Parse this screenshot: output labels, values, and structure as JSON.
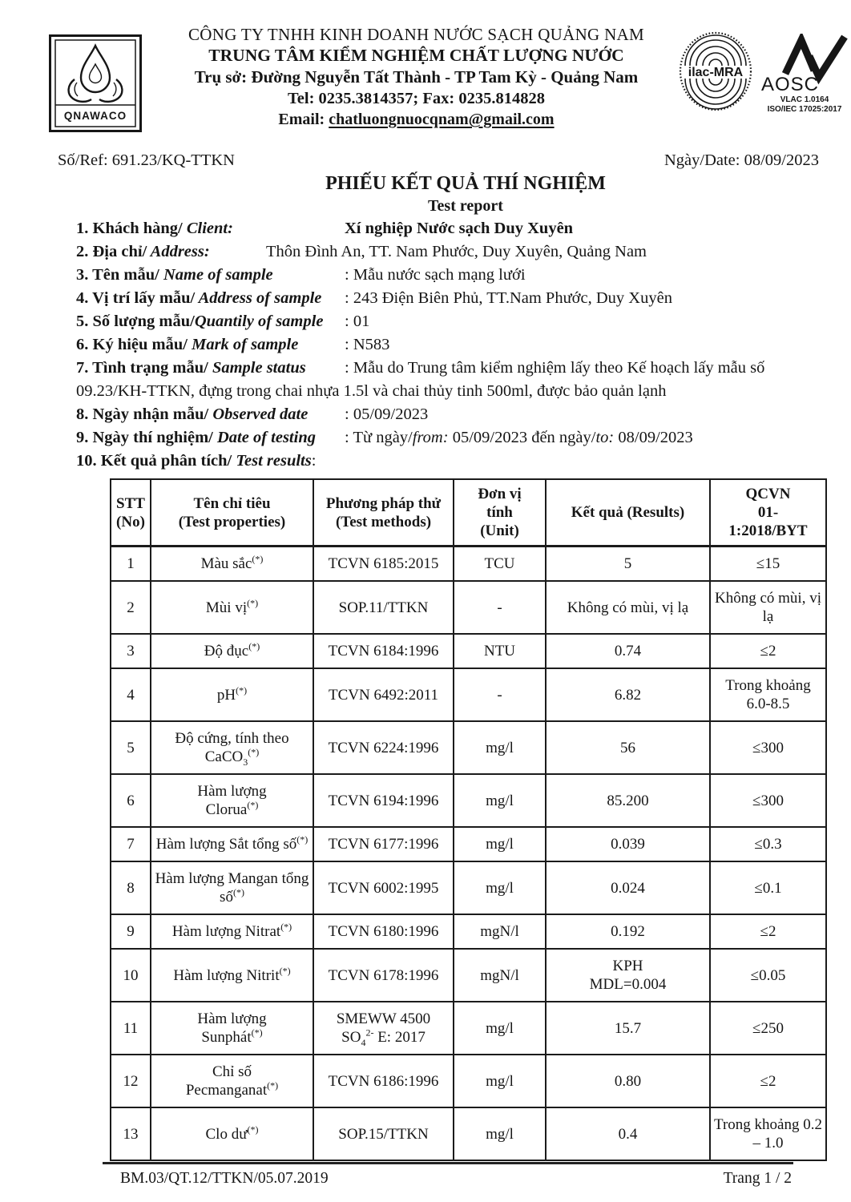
{
  "colors": {
    "ink": "#161616",
    "table_border": "#1b1b1b",
    "background": "#ffffff"
  },
  "header": {
    "org_line1": "CÔNG TY TNHH KINH DOANH NƯỚC SẠCH QUẢNG NAM",
    "org_line2": "TRUNG TÂM KIỂM NGHIỆM CHẤT LƯỢNG NƯỚC",
    "org_line3": "Trụ sở: Đường Nguyễn Tất Thành - TP Tam Kỳ - Quảng Nam",
    "org_line4": "Tel: 0235.3814357; Fax: 0235.814828",
    "email_label": "Email:",
    "email": "chatluongnuocqnam@gmail.com",
    "logos": {
      "qnawaco": "QNAWACO",
      "ilac": "ilac-MRA",
      "aosc": "AOSC",
      "vlac_line": "VLAC 1.0164",
      "iso_line": "ISO/IEC 17025:2017"
    }
  },
  "ref_row": {
    "ref": "Số/Ref: 691.23/KQ-TTKN",
    "date": "Ngày/Date: 08/09/2023"
  },
  "title": {
    "vi": "PHIẾU KẾT QUẢ THÍ NGHIỆM",
    "en": "Test report"
  },
  "items": [
    {
      "label_vi": "1. Khách hàng/",
      "label_en": " Client:",
      "bold_value": true,
      "value_parts": [
        {
          "t": "Xí nghiệp Nước sạch Duy Xuyên"
        }
      ]
    },
    {
      "label_vi": "2. Địa chỉ/",
      "label_en": " Address:",
      "value_parts": [
        {
          "t": "Thôn Đình An, TT. Nam Phước, Duy Xuyên, Quảng Nam"
        }
      ]
    },
    {
      "label_vi": "3. Tên mẫu/",
      "label_en": " Name of sample",
      "value_parts": [
        {
          "t": ": Mẫu nước sạch mạng lưới"
        }
      ]
    },
    {
      "label_vi": "4. Vị trí lấy mẫu/",
      "label_en": " Address of sample",
      "value_parts": [
        {
          "t": ": 243 Điện Biên Phủ, TT.Nam Phước, Duy Xuyên"
        }
      ]
    },
    {
      "label_vi": "5. Số lượng mẫu/",
      "label_en": "Quantily of sample",
      "value_parts": [
        {
          "t": ": 01"
        }
      ]
    },
    {
      "label_vi": "6. Ký hiệu mẫu/",
      "label_en": " Mark of sample",
      "value_parts": [
        {
          "t": ": N583"
        }
      ]
    },
    {
      "label_vi": "7. Tình trạng mẫu/",
      "label_en": " Sample status",
      "value_parts": [
        {
          "t": ": Mẫu do Trung tâm kiểm nghiệm lấy theo Kế hoạch lấy mẫu số 09.23/KH-TTKN, đựng trong chai nhựa 1.5l và chai thủy tinh 500ml, được bảo quản lạnh"
        }
      ]
    },
    {
      "label_vi": "8. Ngày nhận mẫu/",
      "label_en": " Observed date",
      "value_parts": [
        {
          "t": ": 05/09/2023"
        }
      ]
    },
    {
      "label_vi": "9. Ngày thí nghiệm/",
      "label_en": " Date of testing",
      "value_parts": [
        {
          "t": ": Từ ngày/"
        },
        {
          "t": "from:",
          "m": "i"
        },
        {
          "t": " 05/09/2023  đến ngày/"
        },
        {
          "t": "to:",
          "m": "i"
        },
        {
          "t": " 08/09/2023"
        }
      ]
    },
    {
      "label_vi": "10. Kết quả phân tích/",
      "label_en": " Test results",
      "value_parts": [
        {
          "t": ":"
        }
      ]
    }
  ],
  "table": {
    "headers": [
      "STT\n(No)",
      "Tên chỉ tiêu\n(Test properties)",
      "Phương pháp thử\n(Test methods)",
      "Đơn vị\ntính\n(Unit)",
      "Kết quả (Results)",
      "QCVN\n01-\n1:2018/BYT"
    ],
    "rows": [
      {
        "no": "1",
        "name_parts": [
          {
            "t": "Màu sắc"
          },
          {
            "t": "(*)",
            "m": "sup"
          }
        ],
        "method": "TCVN 6185:2015",
        "unit": "TCU",
        "result": "5",
        "limit": "≤15"
      },
      {
        "no": "2",
        "name_parts": [
          {
            "t": "Mùi vị"
          },
          {
            "t": "(*)",
            "m": "sup"
          }
        ],
        "method": "SOP.11/TTKN",
        "unit": "-",
        "result": "Không có mùi, vị lạ",
        "limit": "Không có mùi, vị lạ"
      },
      {
        "no": "3",
        "name_parts": [
          {
            "t": "Độ đục"
          },
          {
            "t": "(*)",
            "m": "sup"
          }
        ],
        "method": "TCVN 6184:1996",
        "unit": "NTU",
        "result": "0.74",
        "limit": "≤2"
      },
      {
        "no": "4",
        "name_parts": [
          {
            "t": "pH"
          },
          {
            "t": "(*)",
            "m": "sup"
          }
        ],
        "method": "TCVN 6492:2011",
        "unit": "-",
        "result": "6.82",
        "limit": "Trong khoảng 6.0-8.5"
      },
      {
        "no": "5",
        "name_parts": [
          {
            "t": "Độ cứng, tính theo CaCO"
          },
          {
            "t": "3",
            "m": "sub"
          },
          {
            "t": "(*)",
            "m": "sup"
          }
        ],
        "method": "TCVN 6224:1996",
        "unit": "mg/l",
        "result": "56",
        "limit": "≤300"
      },
      {
        "no": "6",
        "name_parts": [
          {
            "t": "Hàm lượng\nClorua"
          },
          {
            "t": "(*)",
            "m": "sup"
          }
        ],
        "method": "TCVN 6194:1996",
        "unit": "mg/l",
        "result": "85.200",
        "limit": "≤300"
      },
      {
        "no": "7",
        "name_parts": [
          {
            "t": "Hàm lượng Sắt tổng số"
          },
          {
            "t": "(*)",
            "m": "sup"
          }
        ],
        "method": "TCVN 6177:1996",
        "unit": "mg/l",
        "result": "0.039",
        "limit": "≤0.3"
      },
      {
        "no": "8",
        "name_parts": [
          {
            "t": "Hàm lượng Mangan tổng số"
          },
          {
            "t": "(*)",
            "m": "sup"
          }
        ],
        "method": "TCVN 6002:1995",
        "unit": "mg/l",
        "result": "0.024",
        "limit": "≤0.1"
      },
      {
        "no": "9",
        "name_parts": [
          {
            "t": "Hàm lượng Nitrat"
          },
          {
            "t": "(*)",
            "m": "sup"
          }
        ],
        "method": "TCVN 6180:1996",
        "unit": "mgN/l",
        "result": "0.192",
        "limit": "≤2"
      },
      {
        "no": "10",
        "name_parts": [
          {
            "t": "Hàm lượng Nitrit"
          },
          {
            "t": "(*)",
            "m": "sup"
          }
        ],
        "method": "TCVN 6178:1996",
        "unit": "mgN/l",
        "result": "KPH\nMDL=0.004",
        "limit": "≤0.05"
      },
      {
        "no": "11",
        "name_parts": [
          {
            "t": "Hàm lượng\nSunphát"
          },
          {
            "t": "(*)",
            "m": "sup"
          }
        ],
        "method_parts": [
          {
            "t": "SMEWW 4500\nSO"
          },
          {
            "t": "4",
            "m": "sub"
          },
          {
            "t": "2-",
            "m": "sup"
          },
          {
            "t": " E: 2017"
          }
        ],
        "unit": "mg/l",
        "result": "15.7",
        "limit": "≤250"
      },
      {
        "no": "12",
        "name_parts": [
          {
            "t": "Chỉ số\nPecmanganat"
          },
          {
            "t": "(*)",
            "m": "sup"
          }
        ],
        "method": "TCVN 6186:1996",
        "unit": "mg/l",
        "result": "0.80",
        "limit": "≤2"
      },
      {
        "no": "13",
        "name_parts": [
          {
            "t": "Clo dư"
          },
          {
            "t": "(*)",
            "m": "sup"
          }
        ],
        "method": "SOP.15/TTKN",
        "unit": "mg/l",
        "result": "0.4",
        "limit": "Trong khoảng 0.2 – 1.0"
      }
    ]
  },
  "footer": {
    "left": "BM.03/QT.12/TTKN/05.07.2019",
    "right": "Trang 1 / 2"
  }
}
